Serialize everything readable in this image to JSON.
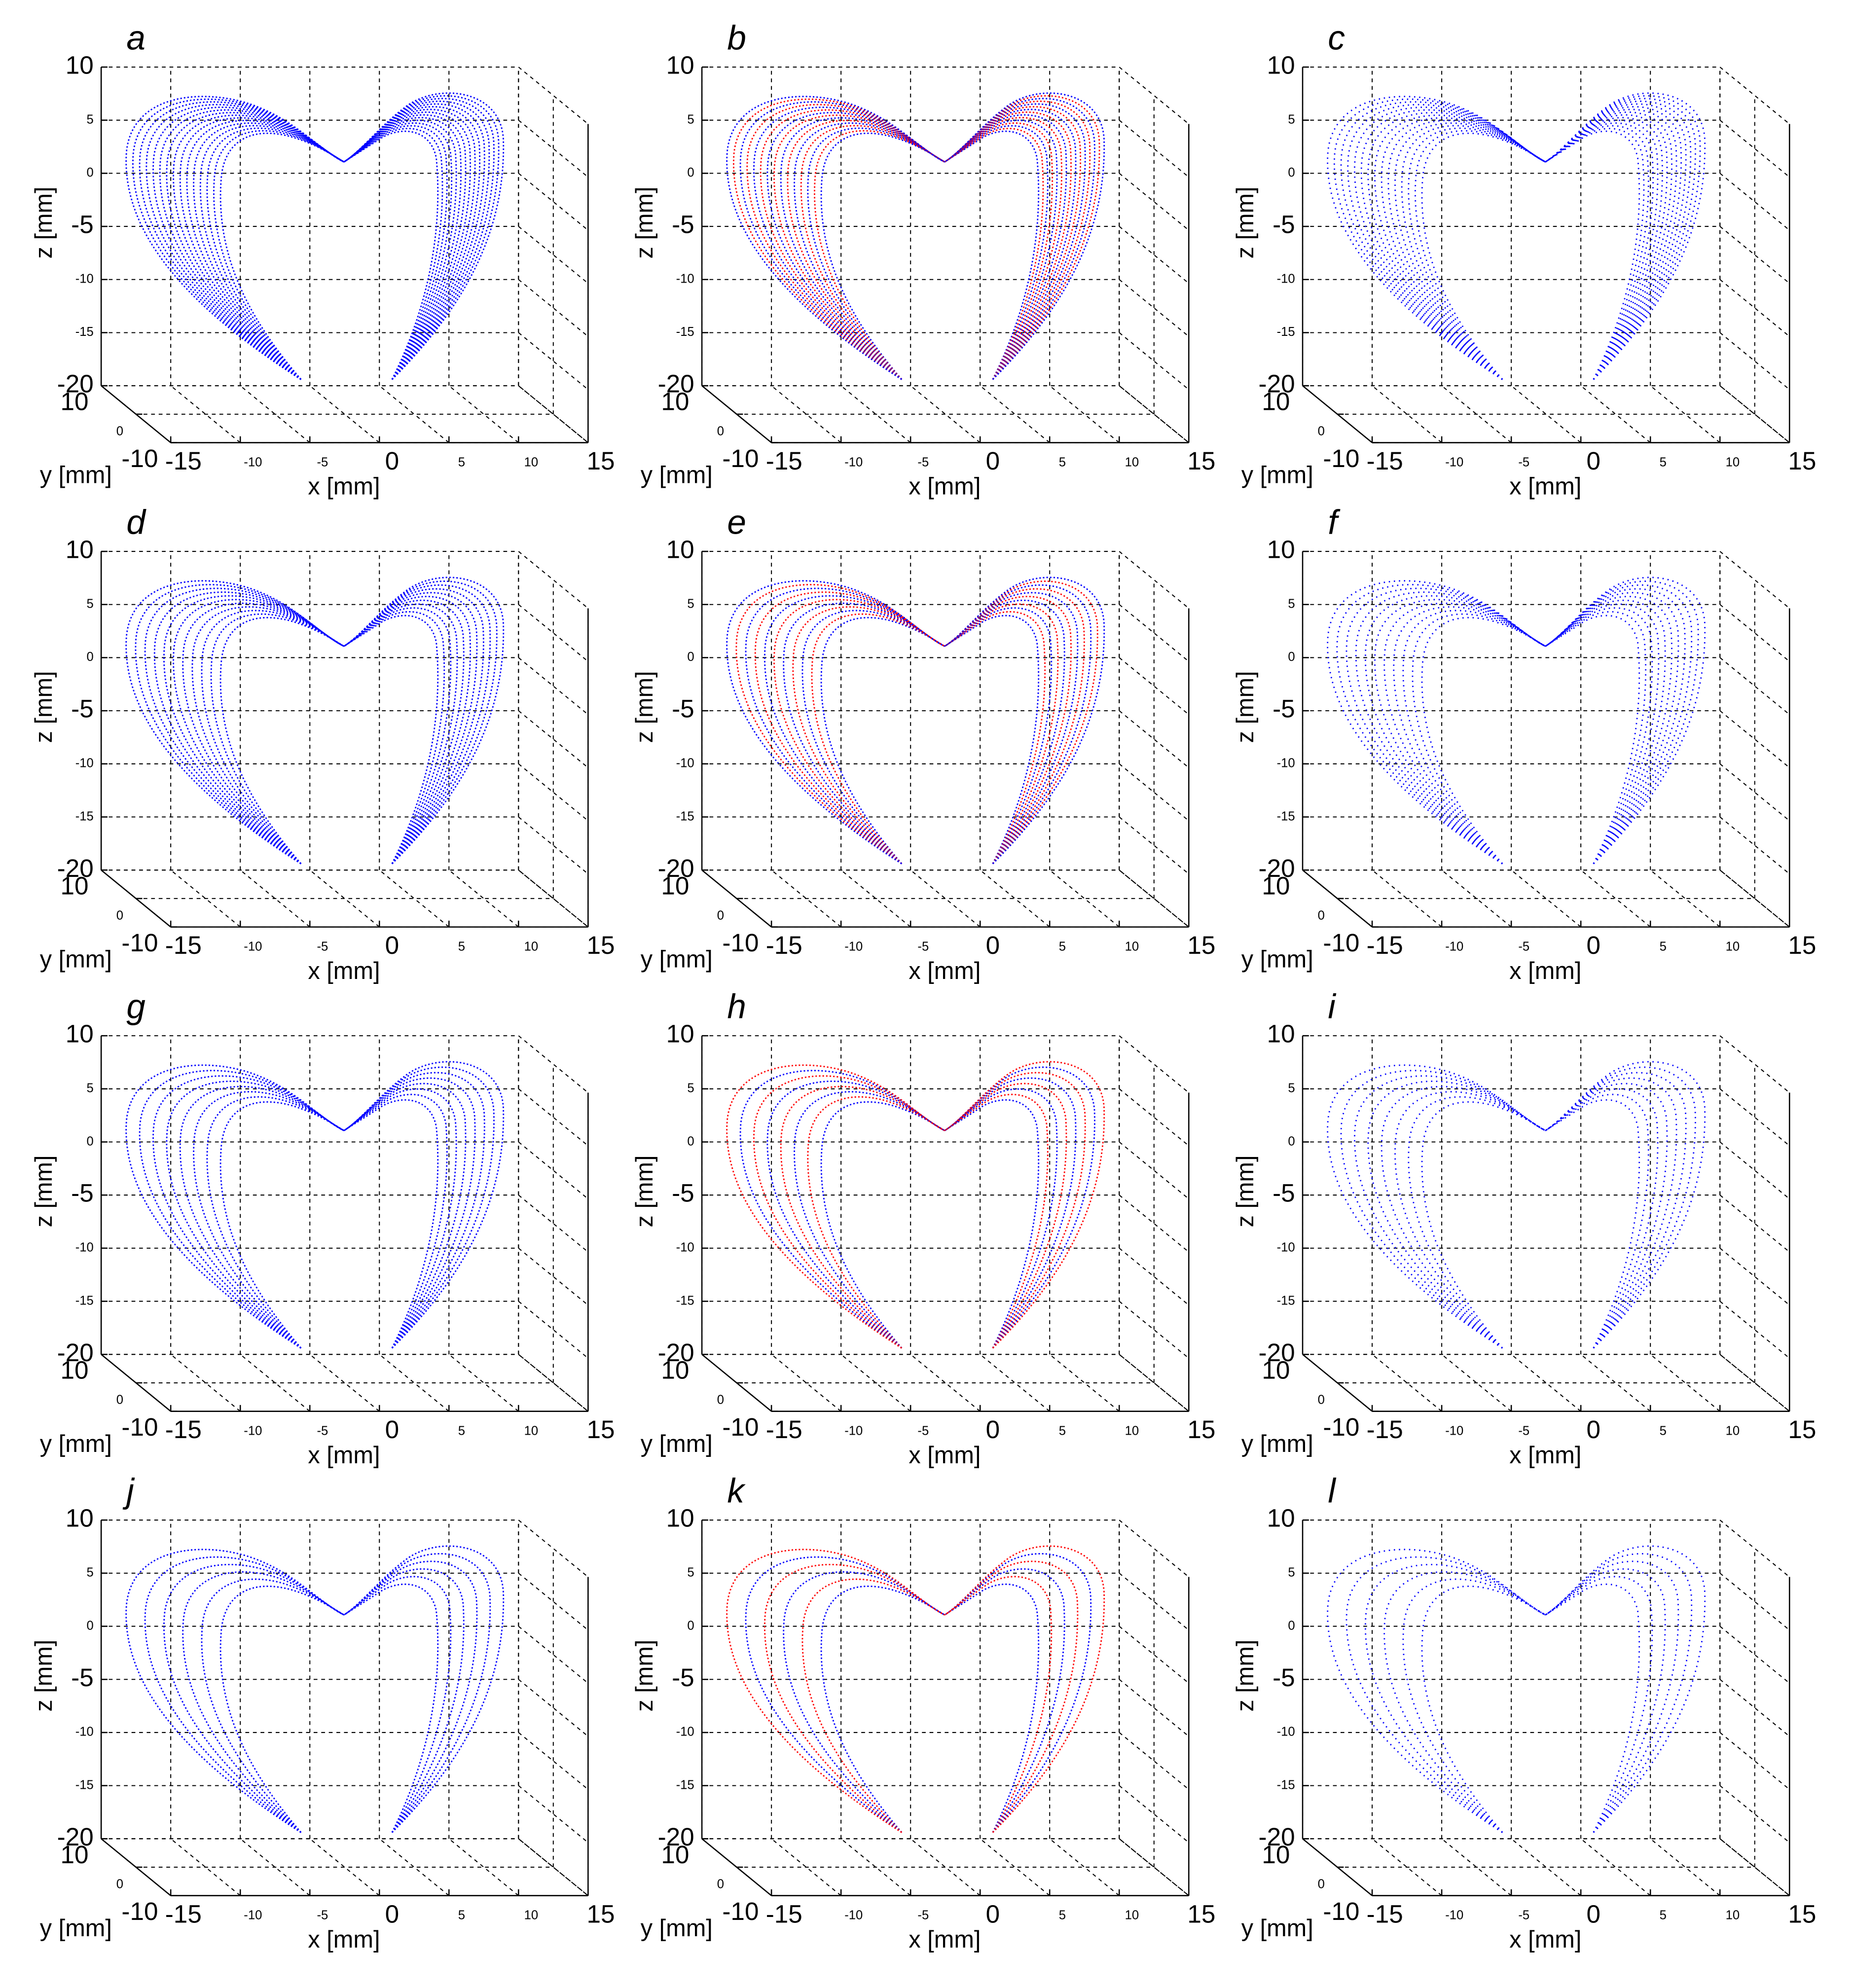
{
  "chart_data": [
    {
      "type": "scatter3d",
      "title": "a",
      "xlabel": "x [mm]",
      "ylabel": "y [mm]",
      "zlabel": "z [mm]",
      "xlim": [
        -15,
        15
      ],
      "ylim": [
        -10,
        10
      ],
      "zlim": [
        -20,
        10
      ],
      "xticks": [
        -15,
        -10,
        -5,
        0,
        5,
        10,
        15
      ],
      "yticks": [
        -10,
        0,
        10
      ],
      "zticks": [
        -20,
        -15,
        -10,
        -5,
        0,
        5,
        10
      ],
      "colors": [
        "#0000ff"
      ],
      "grid": true
    },
    {
      "type": "scatter3d",
      "title": "b",
      "xlabel": "x [mm]",
      "ylabel": "y [mm]",
      "zlabel": "z [mm]",
      "xlim": [
        -15,
        15
      ],
      "ylim": [
        -10,
        10
      ],
      "zlim": [
        -20,
        10
      ],
      "xticks": [
        -15,
        -10,
        -5,
        0,
        5,
        10,
        15
      ],
      "yticks": [
        -10,
        0,
        10
      ],
      "zticks": [
        -20,
        -15,
        -10,
        -5,
        0,
        5,
        10
      ],
      "colors": [
        "#0000ff",
        "#ff0000"
      ],
      "grid": true
    },
    {
      "type": "scatter3d",
      "title": "c",
      "xlabel": "x [mm]",
      "ylabel": "y [mm]",
      "zlabel": "z [mm]",
      "xlim": [
        -15,
        15
      ],
      "ylim": [
        -10,
        10
      ],
      "zlim": [
        -20,
        10
      ],
      "xticks": [
        -15,
        -10,
        -5,
        0,
        5,
        10,
        15
      ],
      "yticks": [
        -10,
        0,
        10
      ],
      "zticks": [
        -20,
        -15,
        -10,
        -5,
        0,
        5,
        10
      ],
      "colors": [
        "#0000ff"
      ],
      "grid": true
    },
    {
      "type": "scatter3d",
      "title": "d",
      "xlabel": "x [mm]",
      "ylabel": "y [mm]",
      "zlabel": "z [mm]",
      "xlim": [
        -15,
        15
      ],
      "ylim": [
        -10,
        10
      ],
      "zlim": [
        -20,
        10
      ],
      "xticks": [
        -15,
        -10,
        -5,
        0,
        5,
        10,
        15
      ],
      "yticks": [
        -10,
        0,
        10
      ],
      "zticks": [
        -20,
        -15,
        -10,
        -5,
        0,
        5,
        10
      ],
      "colors": [
        "#0000ff"
      ],
      "grid": true
    },
    {
      "type": "scatter3d",
      "title": "e",
      "xlabel": "x [mm]",
      "ylabel": "y [mm]",
      "zlabel": "z [mm]",
      "xlim": [
        -15,
        15
      ],
      "ylim": [
        -10,
        10
      ],
      "zlim": [
        -20,
        10
      ],
      "xticks": [
        -15,
        -10,
        -5,
        0,
        5,
        10,
        15
      ],
      "yticks": [
        -10,
        0,
        10
      ],
      "zticks": [
        -20,
        -15,
        -10,
        -5,
        0,
        5,
        10
      ],
      "colors": [
        "#0000ff",
        "#ff0000"
      ],
      "grid": true
    },
    {
      "type": "scatter3d",
      "title": "f",
      "xlabel": "x [mm]",
      "ylabel": "y [mm]",
      "zlabel": "z [mm]",
      "xlim": [
        -15,
        15
      ],
      "ylim": [
        -10,
        10
      ],
      "zlim": [
        -20,
        10
      ],
      "xticks": [
        -15,
        -10,
        -5,
        0,
        5,
        10,
        15
      ],
      "yticks": [
        -10,
        0,
        10
      ],
      "zticks": [
        -20,
        -15,
        -10,
        -5,
        0,
        5,
        10
      ],
      "colors": [
        "#0000ff"
      ],
      "grid": true
    },
    {
      "type": "scatter3d",
      "title": "g",
      "xlabel": "x [mm]",
      "ylabel": "y [mm]",
      "zlabel": "z [mm]",
      "xlim": [
        -15,
        15
      ],
      "ylim": [
        -10,
        10
      ],
      "zlim": [
        -20,
        10
      ],
      "xticks": [
        -15,
        -10,
        -5,
        0,
        5,
        10,
        15
      ],
      "yticks": [
        -10,
        0,
        10
      ],
      "zticks": [
        -20,
        -15,
        -10,
        -5,
        0,
        5,
        10
      ],
      "colors": [
        "#0000ff"
      ],
      "grid": true
    },
    {
      "type": "scatter3d",
      "title": "h",
      "xlabel": "x [mm]",
      "ylabel": "y [mm]",
      "zlabel": "z [mm]",
      "xlim": [
        -15,
        15
      ],
      "ylim": [
        -10,
        10
      ],
      "zlim": [
        -20,
        10
      ],
      "xticks": [
        -15,
        -10,
        -5,
        0,
        5,
        10,
        15
      ],
      "yticks": [
        -10,
        0,
        10
      ],
      "zticks": [
        -20,
        -15,
        -10,
        -5,
        0,
        5,
        10
      ],
      "colors": [
        "#0000ff",
        "#ff0000"
      ],
      "grid": true
    },
    {
      "type": "scatter3d",
      "title": "i",
      "xlabel": "x [mm]",
      "ylabel": "y [mm]",
      "zlabel": "z [mm]",
      "xlim": [
        -15,
        15
      ],
      "ylim": [
        -10,
        10
      ],
      "zlim": [
        -20,
        10
      ],
      "xticks": [
        -15,
        -10,
        -5,
        0,
        5,
        10,
        15
      ],
      "yticks": [
        -10,
        0,
        10
      ],
      "zticks": [
        -20,
        -15,
        -10,
        -5,
        0,
        5,
        10
      ],
      "colors": [
        "#0000ff"
      ],
      "grid": true
    },
    {
      "type": "scatter3d",
      "title": "j",
      "xlabel": "x [mm]",
      "ylabel": "y [mm]",
      "zlabel": "z [mm]",
      "xlim": [
        -15,
        15
      ],
      "ylim": [
        -10,
        10
      ],
      "zlim": [
        -20,
        10
      ],
      "xticks": [
        -15,
        -10,
        -5,
        0,
        5,
        10,
        15
      ],
      "yticks": [
        -10,
        0,
        10
      ],
      "zticks": [
        -20,
        -15,
        -10,
        -5,
        0,
        5,
        10
      ],
      "colors": [
        "#0000ff"
      ],
      "grid": true
    },
    {
      "type": "scatter3d",
      "title": "k",
      "xlabel": "x [mm]",
      "ylabel": "y [mm]",
      "zlabel": "z [mm]",
      "xlim": [
        -15,
        15
      ],
      "ylim": [
        -10,
        10
      ],
      "zlim": [
        -20,
        10
      ],
      "xticks": [
        -15,
        -10,
        -5,
        0,
        5,
        10,
        15
      ],
      "yticks": [
        -10,
        0,
        10
      ],
      "zticks": [
        -20,
        -15,
        -10,
        -5,
        0,
        5,
        10
      ],
      "colors": [
        "#0000ff",
        "#ff0000"
      ],
      "grid": true
    },
    {
      "type": "scatter3d",
      "title": "l",
      "xlabel": "x [mm]",
      "ylabel": "y [mm]",
      "zlabel": "z [mm]",
      "xlim": [
        -15,
        15
      ],
      "ylim": [
        -10,
        10
      ],
      "zlim": [
        -20,
        10
      ],
      "xticks": [
        -15,
        -10,
        -5,
        0,
        5,
        10,
        15
      ],
      "yticks": [
        -10,
        0,
        10
      ],
      "zticks": [
        -20,
        -15,
        -10,
        -5,
        0,
        5,
        10
      ],
      "colors": [
        "#0000ff"
      ],
      "grid": true
    }
  ]
}
